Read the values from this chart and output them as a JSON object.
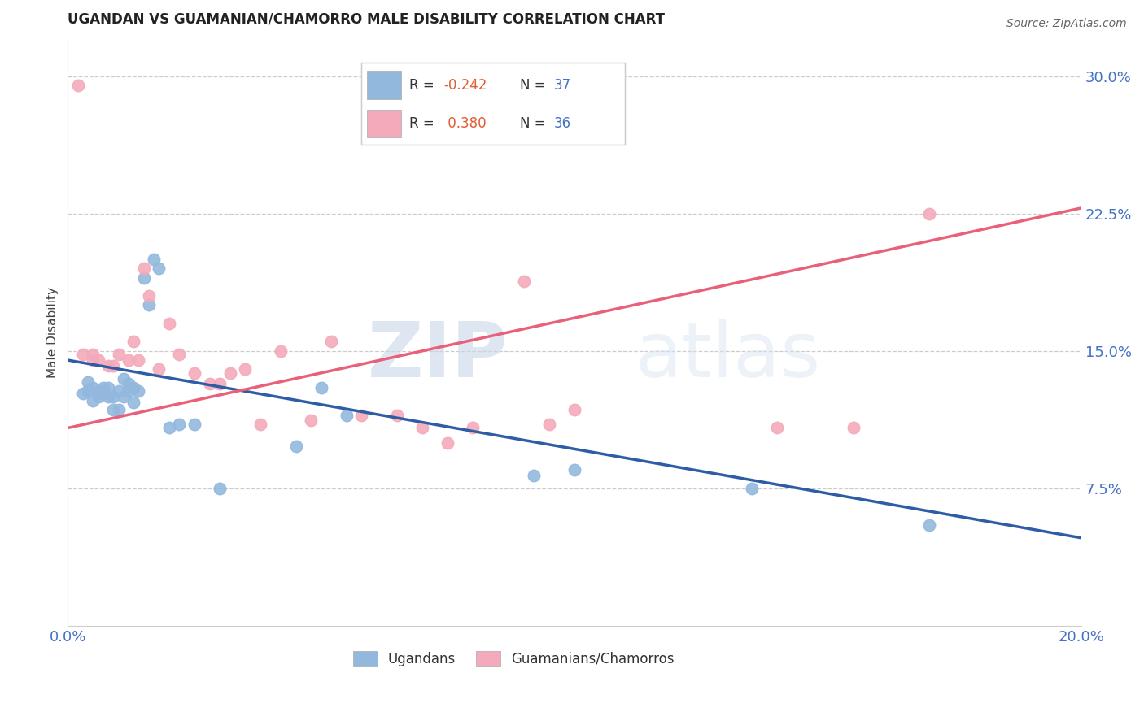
{
  "title": "UGANDAN VS GUAMANIAN/CHAMORRO MALE DISABILITY CORRELATION CHART",
  "source": "Source: ZipAtlas.com",
  "ylabel": "Male Disability",
  "xlim": [
    0.0,
    0.2
  ],
  "ylim": [
    0.0,
    0.32
  ],
  "yticks": [
    0.075,
    0.15,
    0.225,
    0.3
  ],
  "ytick_labels": [
    "7.5%",
    "15.0%",
    "22.5%",
    "30.0%"
  ],
  "xticks": [
    0.0,
    0.05,
    0.1,
    0.15,
    0.2
  ],
  "xtick_labels": [
    "0.0%",
    "",
    "",
    "",
    "20.0%"
  ],
  "blue_R": -0.242,
  "blue_N": 37,
  "pink_R": 0.38,
  "pink_N": 36,
  "blue_color": "#92B8DD",
  "pink_color": "#F4AABB",
  "blue_line_color": "#2E5DA6",
  "pink_line_color": "#E8607A",
  "watermark_zip": "ZIP",
  "watermark_atlas": "atlas",
  "blue_label": "Ugandans",
  "pink_label": "Guamanians/Chamorros",
  "blue_scatter_x": [
    0.003,
    0.004,
    0.004,
    0.005,
    0.005,
    0.006,
    0.006,
    0.007,
    0.007,
    0.008,
    0.008,
    0.009,
    0.009,
    0.01,
    0.01,
    0.011,
    0.011,
    0.012,
    0.012,
    0.013,
    0.013,
    0.014,
    0.015,
    0.016,
    0.017,
    0.018,
    0.02,
    0.022,
    0.025,
    0.03,
    0.045,
    0.05,
    0.055,
    0.092,
    0.1,
    0.135,
    0.17
  ],
  "blue_scatter_y": [
    0.127,
    0.128,
    0.133,
    0.123,
    0.13,
    0.128,
    0.125,
    0.13,
    0.127,
    0.125,
    0.13,
    0.118,
    0.125,
    0.118,
    0.128,
    0.135,
    0.125,
    0.128,
    0.132,
    0.13,
    0.122,
    0.128,
    0.19,
    0.175,
    0.2,
    0.195,
    0.108,
    0.11,
    0.11,
    0.075,
    0.098,
    0.13,
    0.115,
    0.082,
    0.085,
    0.075,
    0.055
  ],
  "pink_scatter_x": [
    0.003,
    0.005,
    0.005,
    0.006,
    0.008,
    0.009,
    0.01,
    0.012,
    0.013,
    0.014,
    0.015,
    0.016,
    0.018,
    0.02,
    0.022,
    0.025,
    0.028,
    0.03,
    0.032,
    0.035,
    0.038,
    0.042,
    0.048,
    0.052,
    0.058,
    0.065,
    0.07,
    0.075,
    0.08,
    0.09,
    0.095,
    0.1,
    0.14,
    0.155,
    0.17,
    0.002
  ],
  "pink_scatter_y": [
    0.148,
    0.148,
    0.145,
    0.145,
    0.142,
    0.142,
    0.148,
    0.145,
    0.155,
    0.145,
    0.195,
    0.18,
    0.14,
    0.165,
    0.148,
    0.138,
    0.132,
    0.132,
    0.138,
    0.14,
    0.11,
    0.15,
    0.112,
    0.155,
    0.115,
    0.115,
    0.108,
    0.1,
    0.108,
    0.188,
    0.11,
    0.118,
    0.108,
    0.108,
    0.225,
    0.295
  ],
  "blue_line_x0": 0.0,
  "blue_line_y0": 0.145,
  "blue_line_x1": 0.2,
  "blue_line_y1": 0.048,
  "pink_line_x0": 0.0,
  "pink_line_y0": 0.108,
  "pink_line_x1": 0.2,
  "pink_line_y1": 0.228
}
